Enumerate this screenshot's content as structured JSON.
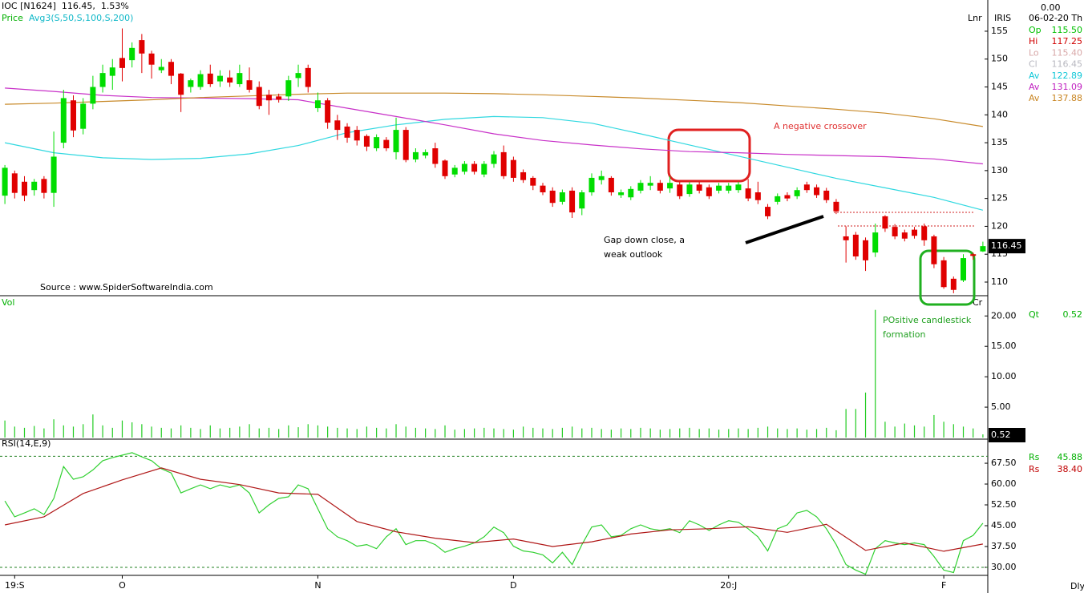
{
  "header": {
    "quote": "IOC [N1624]  116.45,  1.53%",
    "price_label": "Price",
    "avg_label": "Avg3(S,50,S,100,S,200)",
    "scale": "Lnr",
    "source": "Source : www.SpiderSoftwareIndia.com",
    "cr": "Cr",
    "period": "Dly"
  },
  "panel": {
    "top": "0.00",
    "name": "IRIS",
    "date": "06-02-20 Th",
    "rows": [
      {
        "label": "Op",
        "value": "115.50",
        "color": "#00c000"
      },
      {
        "label": "Hi",
        "value": "117.25",
        "color": "#d00000"
      },
      {
        "label": "Lo",
        "value": "115.40",
        "color": "#d8a8a8"
      },
      {
        "label": "Cl",
        "value": "116.45",
        "color": "#b8b8c0"
      },
      {
        "label": "Av",
        "value": "122.89",
        "color": "#10c8d8"
      },
      {
        "label": "Av",
        "value": "131.09",
        "color": "#c020c0"
      },
      {
        "label": "Av",
        "value": "137.88",
        "color": "#c88420"
      }
    ],
    "vol_rows": [
      {
        "label": "Qt",
        "value": "0.52",
        "color": "#00b000"
      }
    ],
    "rsi_rows": [
      {
        "label": "Rs",
        "value": "45.88",
        "color": "#00b000"
      },
      {
        "label": "Rs",
        "value": "38.40",
        "color": "#c00000"
      }
    ]
  },
  "annotations": {
    "crossover": "A negative crossover",
    "gap_1": "Gap down close, a",
    "gap_2": "weak outlook",
    "positive_1": "POsitive candlestick",
    "positive_2": "formation"
  },
  "chart_data": [
    {
      "type": "candlestick",
      "up_color": "#00dd00",
      "down_color": "#e00000",
      "price_tag": "116.45",
      "log_scale": false,
      "xlim": [
        -0.5,
        100.5
      ],
      "ylim": [
        107.7,
        160.6
      ],
      "yticks": [
        110,
        115,
        120,
        125,
        130,
        135,
        140,
        145,
        150,
        155
      ],
      "open": [
        125.5,
        129.5,
        128,
        126.5,
        128.5,
        126,
        135,
        142.6,
        137.5,
        142,
        145,
        147,
        150.2,
        149.8,
        153.4,
        151,
        148,
        149.5,
        147.4,
        145,
        145,
        147.4,
        146,
        146.7,
        145.5,
        146.2,
        145,
        143.6,
        143.3,
        143.3,
        146.6,
        148.4,
        141.2,
        142.6,
        139,
        137.9,
        137.3,
        136.2,
        134,
        135.5,
        133.3,
        137.3,
        132,
        132.7,
        134,
        131.8,
        129.3,
        129.8,
        131.2,
        129.3,
        131.2,
        133.3,
        131.9,
        129.7,
        128.7,
        127.3,
        126.4,
        124.4,
        126.4,
        123.2,
        126.1,
        128.3,
        128.7,
        125.6,
        125.2,
        126.4,
        127.3,
        127.8,
        126.8,
        127.5,
        125.8,
        127.5,
        127,
        126.4,
        126.4,
        126.5,
        126.8,
        126.1,
        123.5,
        124.4,
        125.6,
        125.4,
        127.5,
        127,
        126.4,
        124.4,
        118.2,
        118.5,
        117.5,
        115.3,
        121.8,
        119.9,
        118.9,
        119.4,
        120,
        118.2,
        113.9,
        110.6,
        110.3,
        115,
        115.5
      ],
      "high": [
        131,
        130,
        129,
        128.5,
        129,
        137,
        144.5,
        143.5,
        143,
        147,
        149,
        150,
        155.5,
        153,
        154.5,
        151.5,
        150,
        150,
        147.5,
        146.5,
        148,
        149,
        148,
        148,
        149,
        148.5,
        146,
        144.5,
        143.8,
        147,
        149,
        149,
        144,
        143,
        140,
        138.5,
        138,
        136.5,
        136.5,
        136,
        139.5,
        137.8,
        134,
        133.8,
        135,
        132,
        131,
        131.7,
        131.7,
        131.7,
        133.5,
        134.5,
        132.5,
        130.2,
        129,
        127.8,
        127,
        126.6,
        127,
        126.5,
        129.5,
        130,
        129,
        126.6,
        127.2,
        128.3,
        129,
        128.3,
        129,
        128,
        128,
        128,
        127.5,
        127.8,
        127.8,
        128,
        128.5,
        128,
        124,
        125.9,
        126.1,
        127,
        128,
        127.5,
        126.9,
        124.9,
        120,
        119,
        118,
        120.5,
        122,
        120.4,
        119.4,
        119.9,
        120.5,
        118.5,
        114.5,
        111,
        115,
        115.3,
        117.25
      ],
      "low": [
        124,
        125,
        124.5,
        125.5,
        125,
        123.5,
        134,
        136,
        136.5,
        141,
        144,
        144.5,
        146,
        148.5,
        147.5,
        146.5,
        147.5,
        145.5,
        140.5,
        144,
        144.5,
        145,
        145,
        145,
        145,
        144,
        141,
        140,
        142.2,
        142.5,
        145,
        144,
        140.5,
        137.5,
        135.5,
        135,
        134.5,
        133.5,
        133.5,
        133.5,
        132,
        131.5,
        131.5,
        132.2,
        130.5,
        128.5,
        128.8,
        129.3,
        129.3,
        128.8,
        130.5,
        128.5,
        128,
        127.8,
        126.5,
        125.6,
        123.5,
        123.9,
        121.5,
        122,
        125.5,
        127.5,
        125.5,
        125.1,
        124.7,
        125.9,
        126.5,
        125.9,
        126,
        124.9,
        125.3,
        125.9,
        124.9,
        125.9,
        125.9,
        126,
        124.5,
        124,
        121.3,
        123.9,
        124.5,
        124.9,
        126,
        125.1,
        124.2,
        122.2,
        113.5,
        114,
        112,
        114.5,
        119,
        117.7,
        117.3,
        117.8,
        116.5,
        112.5,
        108.8,
        108,
        110,
        114,
        115.4
      ],
      "close": [
        130.5,
        126,
        125.5,
        128,
        126,
        132.5,
        143,
        137.2,
        142,
        145,
        147.5,
        148.5,
        148.4,
        152,
        151,
        149,
        148.6,
        147,
        143.6,
        146.2,
        147.3,
        145.5,
        147,
        145.8,
        147.5,
        144.5,
        141.6,
        142.6,
        142.7,
        146.2,
        147.5,
        145,
        142.6,
        138.6,
        137.3,
        135.9,
        135.4,
        134.3,
        136,
        134,
        137.3,
        131.9,
        133.3,
        133.3,
        131.2,
        129,
        130.5,
        131.2,
        129.8,
        131.2,
        132.9,
        129,
        128.7,
        128.3,
        127.3,
        126.1,
        124.2,
        126.1,
        122.5,
        126.1,
        128.7,
        129,
        126.1,
        126.1,
        126.7,
        127.8,
        127.8,
        126.4,
        127.8,
        125.4,
        127.5,
        126.4,
        125.4,
        127.3,
        127.3,
        127.5,
        125,
        124.7,
        121.8,
        125.4,
        125,
        126.5,
        126.5,
        125.6,
        124.7,
        122.7,
        117.5,
        114.6,
        113.9,
        118.9,
        119.6,
        118.2,
        117.8,
        118.3,
        117.5,
        113.2,
        109.1,
        108.6,
        114.3,
        114.7,
        116.45
      ],
      "overlays": [
        {
          "color": "#30d8e0",
          "x": [
            0,
            5,
            10,
            15,
            20,
            25,
            30,
            35,
            40,
            45,
            50,
            55,
            60,
            65,
            70,
            75,
            80,
            85,
            90,
            95,
            100
          ],
          "values": [
            135,
            133.2,
            132.3,
            132,
            132.2,
            133,
            134.5,
            136.8,
            138.2,
            139.2,
            139.7,
            139.5,
            138.5,
            136.6,
            134.6,
            132.6,
            130.6,
            128.6,
            126.9,
            125.2,
            122.9
          ]
        },
        {
          "color": "#c830c8",
          "x": [
            0,
            5,
            10,
            15,
            20,
            25,
            30,
            35,
            40,
            45,
            50,
            55,
            60,
            65,
            70,
            75,
            80,
            85,
            90,
            95,
            100
          ],
          "values": [
            144.8,
            144.2,
            143.5,
            143.1,
            143,
            142.9,
            142.7,
            141.2,
            139.7,
            138.2,
            136.6,
            135.4,
            134.6,
            133.9,
            133.4,
            133.2,
            132.9,
            132.7,
            132.5,
            132.1,
            131.2
          ]
        },
        {
          "color": "#c88a2a",
          "x": [
            0,
            5,
            10,
            15,
            20,
            25,
            30,
            35,
            40,
            45,
            50,
            55,
            60,
            65,
            70,
            75,
            80,
            85,
            90,
            95,
            100
          ],
          "values": [
            141.9,
            142.1,
            142.4,
            142.7,
            143.1,
            143.4,
            143.7,
            143.9,
            143.9,
            143.9,
            143.8,
            143.6,
            143.3,
            143,
            142.6,
            142.2,
            141.6,
            141,
            140.3,
            139.3,
            137.9
          ]
        }
      ]
    },
    {
      "type": "bar",
      "title": "Vol",
      "color": "#22cc22",
      "value_tag": "0.52",
      "xlim": [
        -0.5,
        100.5
      ],
      "ylim": [
        0,
        23.2
      ],
      "yticks": [
        {
          "value": 5,
          "label": "5.00"
        },
        {
          "value": 10,
          "label": "10.00"
        },
        {
          "value": 15,
          "label": "15.00"
        },
        {
          "value": 20,
          "label": "20.00"
        }
      ],
      "values": [
        2.8,
        1.8,
        1.6,
        1.9,
        1.5,
        3.0,
        2.0,
        1.8,
        2.2,
        3.8,
        2.0,
        1.6,
        2.8,
        2.5,
        2.2,
        1.8,
        1.6,
        1.5,
        2.0,
        1.6,
        1.4,
        2.0,
        1.5,
        1.6,
        1.8,
        2.2,
        1.5,
        1.6,
        1.4,
        2.0,
        1.7,
        2.2,
        2.0,
        1.8,
        1.6,
        1.5,
        1.4,
        1.8,
        1.6,
        1.5,
        2.2,
        1.8,
        1.6,
        1.5,
        1.4,
        2.0,
        1.3,
        1.4,
        1.5,
        1.6,
        1.5,
        1.4,
        1.3,
        1.8,
        1.6,
        1.5,
        1.4,
        1.6,
        1.8,
        1.5,
        1.6,
        1.4,
        1.3,
        1.5,
        1.4,
        1.6,
        1.5,
        1.3,
        1.4,
        1.5,
        1.6,
        1.4,
        1.5,
        1.3,
        1.4,
        1.5,
        1.4,
        1.6,
        1.8,
        1.5,
        1.4,
        1.5,
        1.3,
        1.4,
        1.6,
        1.2,
        4.7,
        4.7,
        7.4,
        21.0,
        2.6,
        1.8,
        2.3,
        2.0,
        1.8,
        3.7,
        2.6,
        2.2,
        1.8,
        1.5,
        0.52
      ]
    },
    {
      "type": "line",
      "title": "RSI(14,E,9)",
      "xlim": [
        -0.5,
        100.5
      ],
      "ylim": [
        27.1,
        75.6
      ],
      "levels": [
        30,
        70
      ],
      "level_color": "#208020",
      "yticks": [
        {
          "value": 30,
          "label": "30.00"
        },
        {
          "value": 37.5,
          "label": "37.50"
        },
        {
          "value": 45,
          "label": "45.00"
        },
        {
          "value": 52.5,
          "label": "52.50"
        },
        {
          "value": 60,
          "label": "60.00"
        },
        {
          "value": 67.5,
          "label": "67.50"
        }
      ],
      "xticks": [
        {
          "value": 1,
          "label": "19:S"
        },
        {
          "value": 12,
          "label": "O"
        },
        {
          "value": 32,
          "label": "N"
        },
        {
          "value": 52,
          "label": "D"
        },
        {
          "value": 74,
          "label": "20:J"
        },
        {
          "value": 96,
          "label": "F"
        }
      ],
      "series": [
        {
          "color": "#30d030",
          "x": [
            0,
            1,
            2,
            3,
            4,
            5,
            6,
            7,
            8,
            9,
            10,
            11,
            12,
            13,
            14,
            15,
            16,
            17,
            18,
            19,
            20,
            21,
            22,
            23,
            24,
            25,
            26,
            27,
            28,
            29,
            30,
            31,
            32,
            33,
            34,
            35,
            36,
            37,
            38,
            39,
            40,
            41,
            42,
            43,
            44,
            45,
            46,
            47,
            48,
            49,
            50,
            51,
            52,
            53,
            54,
            55,
            56,
            57,
            58,
            59,
            60,
            61,
            62,
            63,
            64,
            65,
            66,
            67,
            68,
            69,
            70,
            71,
            72,
            73,
            74,
            75,
            76,
            77,
            78,
            79,
            80,
            81,
            82,
            83,
            84,
            85,
            86,
            87,
            88,
            89,
            90,
            91,
            92,
            93,
            94,
            95,
            96,
            97,
            98,
            99,
            100
          ],
          "values": [
            53.9,
            48.2,
            49.6,
            51.1,
            49.0,
            54.8,
            66.3,
            61.7,
            62.6,
            65.1,
            68.4,
            69.5,
            70.4,
            71.3,
            69.8,
            68.4,
            65.5,
            64.0,
            56.8,
            58.3,
            59.7,
            58.3,
            59.7,
            58.8,
            59.7,
            56.8,
            49.6,
            52.5,
            54.8,
            55.4,
            59.7,
            58.3,
            51.1,
            43.9,
            41.0,
            39.6,
            37.6,
            38.2,
            36.7,
            41.0,
            43.9,
            38.2,
            39.6,
            39.6,
            38.2,
            35.4,
            36.7,
            37.6,
            38.8,
            41.0,
            44.5,
            42.5,
            37.6,
            35.9,
            35.4,
            34.5,
            31.6,
            35.4,
            31.0,
            38.2,
            44.5,
            45.3,
            41.0,
            41.5,
            43.9,
            45.3,
            43.9,
            43.3,
            43.9,
            42.5,
            46.8,
            45.3,
            43.3,
            45.3,
            46.8,
            46.2,
            43.9,
            41.0,
            35.9,
            43.9,
            45.3,
            49.6,
            50.5,
            48.2,
            43.9,
            38.2,
            31.0,
            29.0,
            27.5,
            36.7,
            39.6,
            38.8,
            38.2,
            38.8,
            38.2,
            33.9,
            29.0,
            28.1,
            39.6,
            41.5,
            45.88
          ]
        },
        {
          "color": "#b01818",
          "x": [
            0,
            4,
            8,
            12,
            16,
            20,
            24,
            28,
            32,
            36,
            40,
            44,
            48,
            52,
            56,
            60,
            64,
            68,
            72,
            76,
            80,
            84,
            88,
            92,
            96,
            100
          ],
          "values": [
            45.3,
            48.2,
            56.6,
            61.5,
            65.8,
            61.7,
            59.8,
            56.8,
            56.3,
            46.5,
            42.8,
            40.5,
            38.9,
            40.2,
            37.5,
            39.2,
            42.0,
            43.5,
            43.9,
            44.6,
            42.6,
            45.5,
            36.1,
            38.8,
            35.8,
            38.4
          ]
        }
      ]
    }
  ]
}
